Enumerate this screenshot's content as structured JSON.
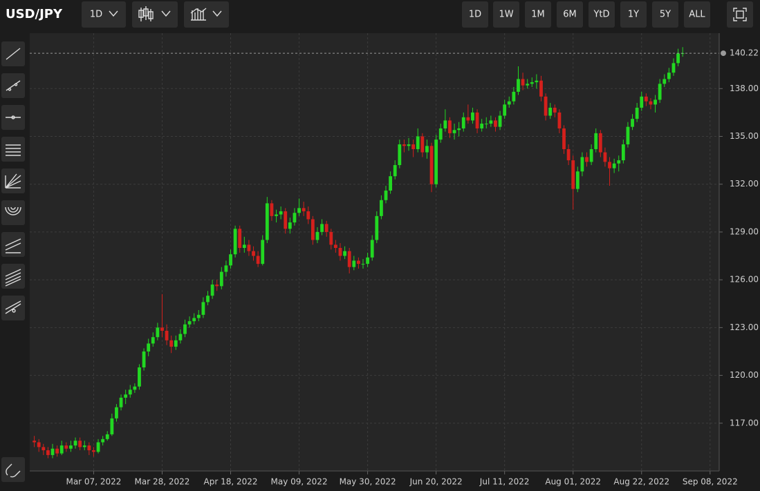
{
  "toolbar": {
    "symbol": "USD/JPY",
    "interval": "1D",
    "ranges": [
      "1D",
      "1W",
      "1M",
      "6M",
      "YtD",
      "1Y",
      "5Y",
      "ALL"
    ]
  },
  "chart_data": {
    "type": "candlestick",
    "up_color": "#22d822",
    "down_color": "#d4201c",
    "grid": true,
    "ylim": [
      114,
      141.48
    ],
    "yticks": [
      {
        "value": 117,
        "label": "117.00"
      },
      {
        "value": 120,
        "label": "120.00"
      },
      {
        "value": 123,
        "label": "123.00"
      },
      {
        "value": 126,
        "label": "126.00"
      },
      {
        "value": 129,
        "label": "129.00"
      },
      {
        "value": 132,
        "label": "132.00"
      },
      {
        "value": 135,
        "label": "135.00"
      },
      {
        "value": 138,
        "label": "138.00"
      }
    ],
    "xlim": [
      -1,
      150
    ],
    "xticks": [
      {
        "value": 13,
        "label": "Mar 07, 2022"
      },
      {
        "value": 28,
        "label": "Mar 28, 2022"
      },
      {
        "value": 43,
        "label": "Apr 18, 2022"
      },
      {
        "value": 58,
        "label": "May 09, 2022"
      },
      {
        "value": 73,
        "label": "May 30, 2022"
      },
      {
        "value": 88,
        "label": "Jun 20, 2022"
      },
      {
        "value": 103,
        "label": "Jul 11, 2022"
      },
      {
        "value": 118,
        "label": "Aug 01, 2022"
      },
      {
        "value": 133,
        "label": "Aug 22, 2022"
      },
      {
        "value": 148,
        "label": "Sep 08, 2022"
      }
    ],
    "last_price": {
      "value": 140.22,
      "label": "140.22"
    },
    "candles": [
      [
        115.9,
        116.2,
        115.5,
        115.8
      ],
      [
        115.8,
        116.0,
        115.2,
        115.5
      ],
      [
        115.5,
        115.7,
        115.0,
        115.3
      ],
      [
        115.3,
        115.5,
        114.8,
        115.0
      ],
      [
        115.0,
        115.7,
        114.8,
        115.4
      ],
      [
        115.4,
        115.6,
        114.9,
        115.1
      ],
      [
        115.1,
        115.9,
        115.0,
        115.6
      ],
      [
        115.6,
        115.8,
        115.2,
        115.4
      ],
      [
        115.4,
        115.9,
        115.2,
        115.6
      ],
      [
        115.6,
        116.1,
        115.4,
        115.9
      ],
      [
        115.9,
        116.1,
        115.3,
        115.5
      ],
      [
        115.5,
        115.9,
        115.3,
        115.6
      ],
      [
        115.6,
        115.8,
        115.0,
        115.3
      ],
      [
        115.3,
        115.5,
        114.9,
        115.2
      ],
      [
        115.2,
        116.0,
        115.1,
        115.8
      ],
      [
        115.8,
        116.2,
        115.6,
        116.0
      ],
      [
        116.0,
        116.5,
        115.9,
        116.3
      ],
      [
        116.3,
        117.6,
        116.2,
        117.3
      ],
      [
        117.3,
        118.2,
        117.1,
        118.0
      ],
      [
        118.0,
        118.8,
        117.8,
        118.6
      ],
      [
        118.6,
        119.1,
        118.2,
        118.8
      ],
      [
        118.8,
        119.4,
        118.6,
        119.1
      ],
      [
        119.1,
        119.5,
        118.9,
        119.3
      ],
      [
        119.3,
        120.7,
        119.1,
        120.5
      ],
      [
        120.5,
        121.7,
        120.3,
        121.5
      ],
      [
        121.5,
        122.3,
        121.2,
        122.0
      ],
      [
        122.0,
        122.7,
        121.8,
        122.4
      ],
      [
        122.4,
        123.3,
        122.2,
        123.0
      ],
      [
        123.0,
        125.1,
        122.4,
        122.8
      ],
      [
        122.8,
        123.2,
        121.9,
        122.2
      ],
      [
        122.2,
        122.5,
        121.4,
        121.8
      ],
      [
        121.8,
        122.5,
        121.6,
        122.2
      ],
      [
        122.2,
        122.9,
        122.0,
        122.6
      ],
      [
        122.6,
        123.5,
        122.4,
        123.2
      ],
      [
        123.2,
        123.7,
        123.0,
        123.4
      ],
      [
        123.4,
        123.9,
        123.2,
        123.6
      ],
      [
        123.6,
        124.1,
        123.4,
        123.8
      ],
      [
        123.8,
        124.9,
        123.6,
        124.6
      ],
      [
        124.6,
        125.3,
        124.4,
        125.0
      ],
      [
        125.0,
        126.0,
        124.8,
        125.7
      ],
      [
        125.7,
        126.0,
        125.3,
        125.6
      ],
      [
        125.6,
        126.8,
        125.4,
        126.5
      ],
      [
        126.5,
        127.2,
        126.2,
        126.9
      ],
      [
        126.9,
        127.9,
        126.7,
        127.6
      ],
      [
        127.6,
        129.4,
        127.4,
        129.2
      ],
      [
        129.2,
        129.4,
        127.7,
        128.0
      ],
      [
        128.0,
        128.7,
        127.7,
        128.2
      ],
      [
        128.2,
        128.5,
        127.5,
        127.8
      ],
      [
        127.8,
        128.1,
        127.2,
        127.5
      ],
      [
        127.5,
        127.8,
        126.8,
        127.0
      ],
      [
        127.0,
        128.8,
        126.9,
        128.5
      ],
      [
        128.5,
        131.2,
        128.3,
        130.8
      ],
      [
        130.8,
        131.0,
        129.7,
        130.0
      ],
      [
        130.0,
        130.4,
        129.6,
        130.1
      ],
      [
        130.1,
        130.6,
        129.8,
        130.3
      ],
      [
        130.3,
        130.5,
        128.9,
        129.2
      ],
      [
        129.2,
        129.9,
        128.9,
        129.6
      ],
      [
        129.6,
        130.5,
        129.4,
        130.2
      ],
      [
        130.2,
        131.1,
        130.0,
        130.5
      ],
      [
        130.5,
        130.9,
        130.0,
        130.3
      ],
      [
        130.3,
        130.6,
        129.5,
        129.8
      ],
      [
        129.8,
        130.0,
        128.2,
        128.5
      ],
      [
        128.5,
        129.3,
        128.3,
        129.0
      ],
      [
        129.0,
        129.8,
        128.8,
        129.5
      ],
      [
        129.5,
        129.7,
        128.7,
        129.0
      ],
      [
        129.0,
        129.2,
        127.9,
        128.2
      ],
      [
        128.2,
        128.5,
        127.7,
        128.0
      ],
      [
        128.0,
        128.3,
        127.2,
        127.5
      ],
      [
        127.5,
        128.1,
        127.3,
        127.8
      ],
      [
        127.8,
        128.0,
        126.4,
        126.8
      ],
      [
        126.8,
        127.5,
        126.6,
        127.2
      ],
      [
        127.2,
        127.4,
        126.7,
        127.0
      ],
      [
        127.0,
        127.3,
        126.7,
        127.0
      ],
      [
        127.0,
        127.7,
        126.8,
        127.4
      ],
      [
        127.4,
        128.8,
        127.2,
        128.5
      ],
      [
        128.5,
        130.3,
        128.3,
        130.0
      ],
      [
        130.0,
        131.3,
        129.8,
        131.0
      ],
      [
        131.0,
        131.9,
        130.8,
        131.6
      ],
      [
        131.6,
        132.8,
        131.4,
        132.5
      ],
      [
        132.5,
        133.5,
        132.3,
        133.2
      ],
      [
        133.2,
        134.8,
        133.0,
        134.5
      ],
      [
        134.5,
        134.8,
        134.0,
        134.4
      ],
      [
        134.4,
        134.9,
        134.1,
        134.5
      ],
      [
        134.5,
        134.8,
        133.7,
        134.2
      ],
      [
        134.2,
        135.5,
        134.0,
        135.0
      ],
      [
        135.0,
        135.2,
        133.7,
        134.0
      ],
      [
        134.0,
        134.8,
        133.6,
        134.4
      ],
      [
        134.4,
        134.6,
        131.5,
        132.0
      ],
      [
        132.0,
        135.1,
        131.8,
        134.8
      ],
      [
        134.8,
        135.8,
        134.6,
        135.5
      ],
      [
        135.5,
        136.7,
        135.3,
        136.0
      ],
      [
        136.0,
        136.2,
        134.9,
        135.2
      ],
      [
        135.2,
        135.8,
        134.8,
        135.4
      ],
      [
        135.4,
        135.9,
        135.0,
        135.5
      ],
      [
        135.5,
        136.5,
        135.3,
        136.2
      ],
      [
        136.2,
        137.0,
        135.8,
        136.0
      ],
      [
        136.0,
        136.8,
        135.8,
        136.5
      ],
      [
        136.5,
        136.7,
        135.2,
        135.5
      ],
      [
        135.5,
        136.1,
        135.3,
        135.8
      ],
      [
        135.8,
        136.2,
        135.5,
        135.8
      ],
      [
        135.8,
        136.3,
        135.6,
        136.0
      ],
      [
        136.0,
        136.2,
        135.3,
        135.6
      ],
      [
        135.6,
        136.6,
        135.4,
        136.3
      ],
      [
        136.3,
        137.3,
        136.1,
        137.0
      ],
      [
        137.0,
        137.5,
        136.8,
        137.2
      ],
      [
        137.2,
        138.1,
        137.0,
        137.8
      ],
      [
        137.8,
        139.4,
        137.6,
        138.6
      ],
      [
        138.6,
        139.0,
        137.9,
        138.2
      ],
      [
        138.2,
        138.6,
        138.0,
        138.3
      ],
      [
        138.3,
        138.7,
        138.1,
        138.4
      ],
      [
        138.4,
        138.9,
        138.0,
        138.5
      ],
      [
        138.5,
        138.8,
        137.2,
        137.5
      ],
      [
        137.5,
        137.7,
        136.0,
        136.3
      ],
      [
        136.3,
        137.1,
        136.1,
        136.8
      ],
      [
        136.8,
        137.0,
        136.2,
        136.5
      ],
      [
        136.5,
        136.7,
        135.2,
        135.5
      ],
      [
        135.5,
        135.7,
        133.9,
        134.2
      ],
      [
        134.2,
        134.5,
        133.2,
        133.5
      ],
      [
        133.5,
        133.8,
        130.4,
        131.7
      ],
      [
        131.7,
        133.1,
        131.5,
        132.8
      ],
      [
        132.8,
        134.0,
        132.5,
        133.7
      ],
      [
        133.7,
        134.0,
        133.1,
        133.4
      ],
      [
        133.4,
        134.5,
        133.2,
        134.2
      ],
      [
        134.2,
        135.5,
        134.0,
        135.2
      ],
      [
        135.2,
        135.4,
        133.7,
        134.0
      ],
      [
        134.0,
        134.3,
        133.1,
        133.4
      ],
      [
        133.4,
        133.7,
        131.9,
        133.0
      ],
      [
        133.0,
        133.6,
        132.7,
        133.3
      ],
      [
        133.3,
        133.8,
        132.8,
        133.5
      ],
      [
        133.5,
        134.8,
        133.3,
        134.5
      ],
      [
        134.5,
        135.9,
        134.3,
        135.6
      ],
      [
        135.6,
        136.4,
        135.4,
        136.1
      ],
      [
        136.1,
        137.1,
        135.9,
        136.8
      ],
      [
        136.8,
        137.8,
        136.6,
        137.5
      ],
      [
        137.5,
        137.7,
        136.9,
        137.2
      ],
      [
        137.2,
        137.4,
        136.7,
        137.0
      ],
      [
        137.0,
        137.6,
        136.5,
        137.3
      ],
      [
        137.3,
        138.6,
        137.1,
        138.3
      ],
      [
        138.3,
        138.9,
        138.1,
        138.6
      ],
      [
        138.6,
        139.3,
        138.4,
        139.0
      ],
      [
        139.0,
        139.9,
        138.8,
        139.6
      ],
      [
        139.6,
        140.5,
        139.4,
        140.2
      ],
      [
        140.2,
        140.6,
        140.0,
        140.22
      ]
    ]
  }
}
